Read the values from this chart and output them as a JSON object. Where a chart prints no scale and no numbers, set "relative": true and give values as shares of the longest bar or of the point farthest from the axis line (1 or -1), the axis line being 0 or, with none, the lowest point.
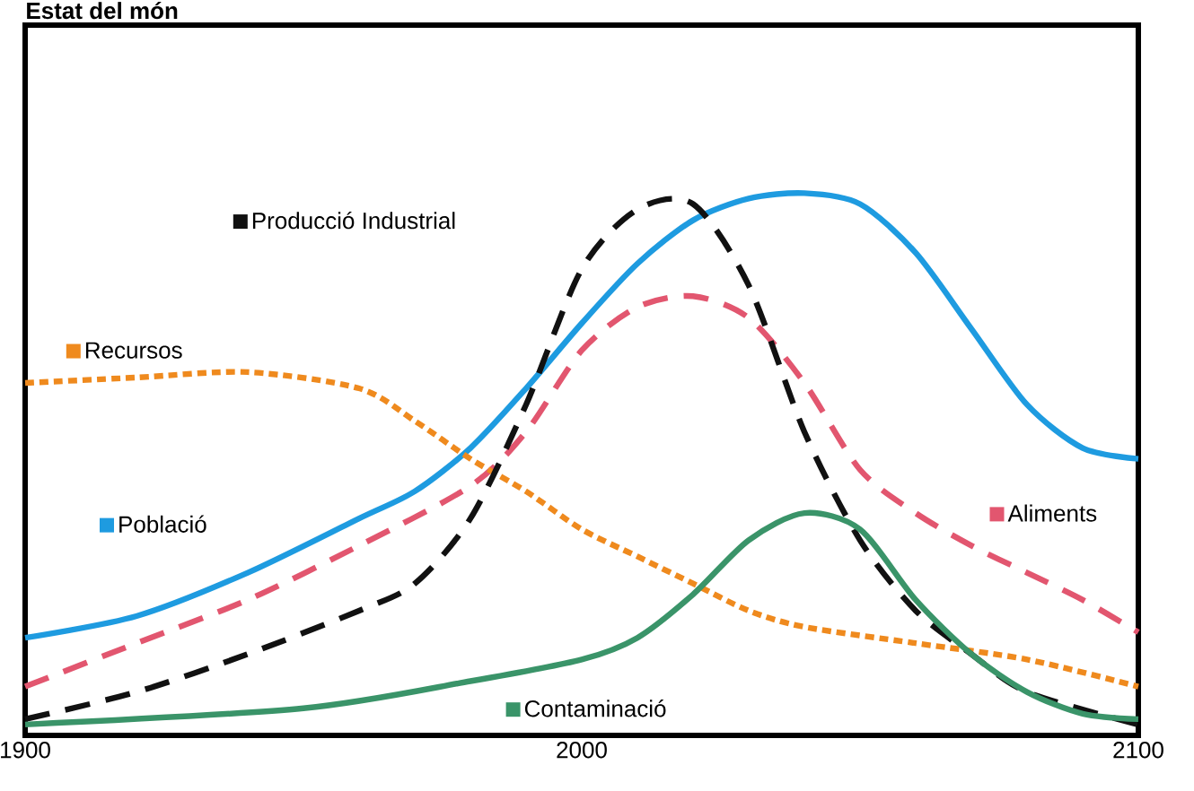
{
  "chart_data": {
    "type": "line",
    "title": "Estat del món",
    "relative": true,
    "legend": "left",
    "grid": false,
    "xlim": [
      1900,
      2100
    ],
    "xticks": [
      1900,
      2000,
      2100
    ],
    "series": [
      {
        "name": "Població",
        "color": "#1e9be0",
        "line_style": "solid",
        "x": [
          1900,
          1920,
          1940,
          1960,
          1970,
          1980,
          1990,
          2000,
          2010,
          2020,
          2030,
          2040,
          2050,
          2060,
          2070,
          2080,
          2090,
          2100
        ],
        "values": [
          0.18,
          0.22,
          0.3,
          0.4,
          0.45,
          0.53,
          0.64,
          0.76,
          0.87,
          0.95,
          0.99,
          1.0,
          0.98,
          0.89,
          0.75,
          0.61,
          0.53,
          0.51
        ]
      },
      {
        "name": "Aliments",
        "color": "#e2566f",
        "line_style": "dashed",
        "x": [
          1900,
          1920,
          1940,
          1960,
          1980,
          1990,
          2000,
          2010,
          2020,
          2030,
          2040,
          2050,
          2060,
          2070,
          2080,
          2090,
          2100
        ],
        "values": [
          0.09,
          0.17,
          0.25,
          0.35,
          0.46,
          0.56,
          0.71,
          0.79,
          0.81,
          0.77,
          0.65,
          0.49,
          0.41,
          0.35,
          0.3,
          0.25,
          0.19
        ]
      },
      {
        "name": "Recursos",
        "color": "#ef8a1e",
        "line_style": "dotted",
        "x": [
          1900,
          1920,
          1940,
          1960,
          1970,
          1980,
          1990,
          2000,
          2010,
          2020,
          2030,
          2040,
          2060,
          2080,
          2100
        ],
        "values": [
          0.65,
          0.66,
          0.67,
          0.64,
          0.58,
          0.51,
          0.45,
          0.38,
          0.33,
          0.28,
          0.23,
          0.2,
          0.17,
          0.14,
          0.09
        ]
      },
      {
        "name": "Producció Industrial",
        "color": "#111111",
        "line_style": "dashed",
        "x": [
          1900,
          1920,
          1940,
          1960,
          1970,
          1980,
          1990,
          2000,
          2010,
          2020,
          2030,
          2040,
          2050,
          2060,
          2070,
          2080,
          2100
        ],
        "values": [
          0.03,
          0.08,
          0.15,
          0.23,
          0.28,
          0.4,
          0.61,
          0.86,
          0.97,
          0.98,
          0.83,
          0.56,
          0.36,
          0.23,
          0.15,
          0.08,
          0.02
        ]
      },
      {
        "name": "Contaminació",
        "color": "#3a9469",
        "line_style": "solid",
        "x": [
          1900,
          1950,
          1980,
          2000,
          2010,
          2020,
          2030,
          2040,
          2050,
          2060,
          2070,
          2080,
          2090,
          2100
        ],
        "values": [
          0.02,
          0.05,
          0.1,
          0.14,
          0.18,
          0.26,
          0.36,
          0.41,
          0.38,
          0.25,
          0.15,
          0.08,
          0.04,
          0.03
        ]
      }
    ]
  }
}
